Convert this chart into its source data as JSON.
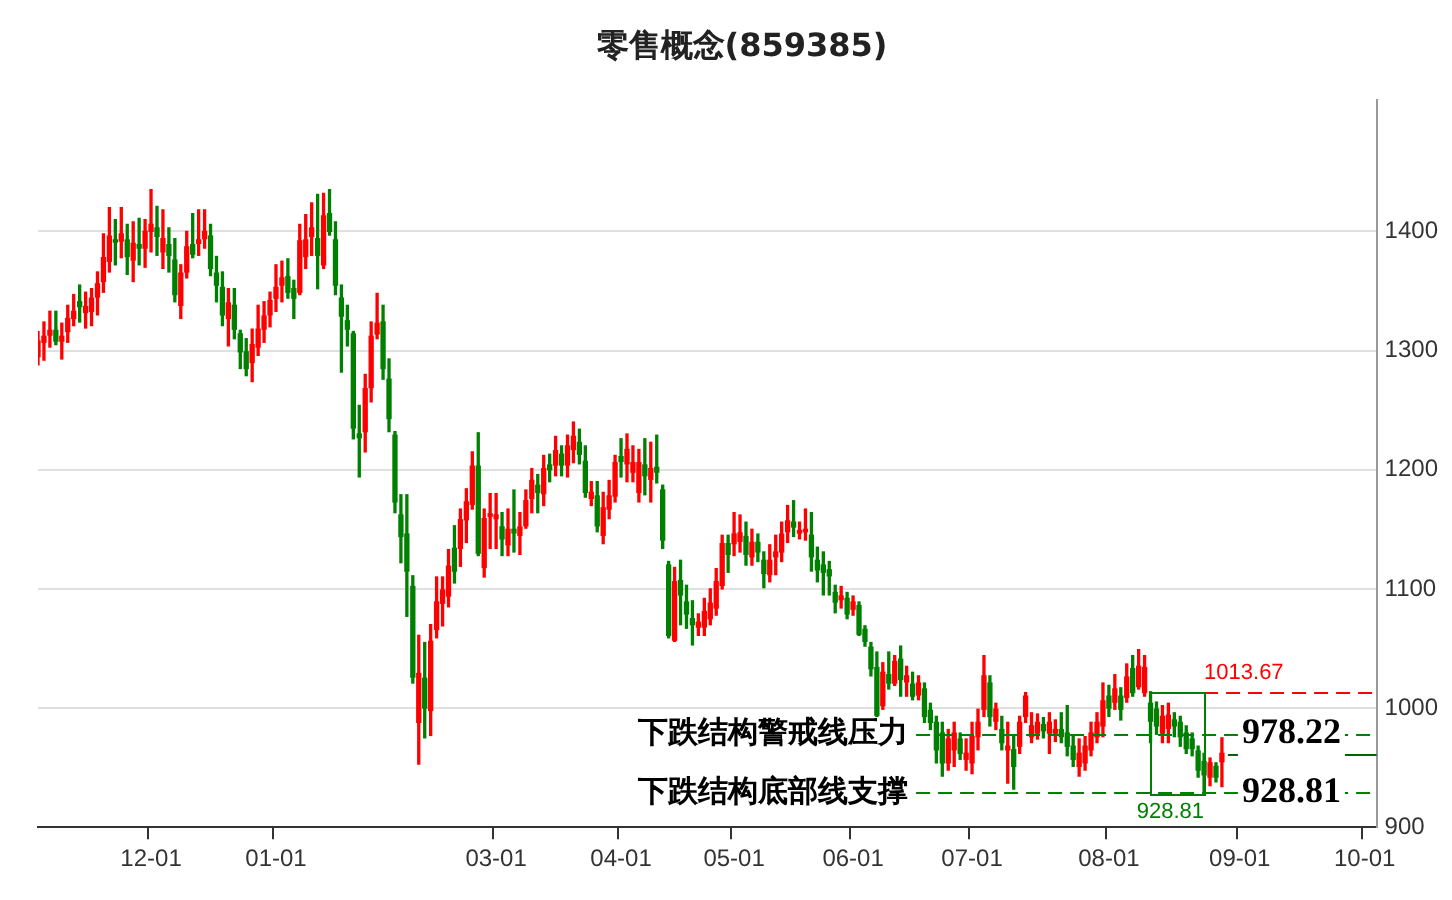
{
  "chart_data": {
    "type": "candlestick",
    "title": "零售概念(859385)",
    "categories": [
      null,
      null,
      null,
      null,
      null,
      null,
      null,
      null,
      null,
      null,
      null,
      null,
      null,
      null,
      null,
      null,
      null,
      null,
      null,
      "12-01",
      null,
      null,
      null,
      null,
      null,
      null,
      null,
      null,
      null,
      null,
      null,
      null,
      null,
      null,
      null,
      null,
      null,
      null,
      null,
      null,
      "01-01",
      null,
      null,
      null,
      null,
      null,
      null,
      null,
      null,
      null,
      null,
      null,
      null,
      null,
      null,
      null,
      null,
      null,
      null,
      null,
      null,
      null,
      null,
      null,
      null,
      null,
      null,
      null,
      null,
      null,
      null,
      null,
      null,
      null,
      null,
      null,
      null,
      "03-01",
      null,
      null,
      null,
      null,
      null,
      null,
      null,
      null,
      null,
      null,
      null,
      null,
      null,
      null,
      null,
      null,
      null,
      null,
      null,
      null,
      "04-01",
      null,
      null,
      null,
      null,
      null,
      null,
      null,
      null,
      null,
      null,
      null,
      null,
      null,
      null,
      null,
      null,
      null,
      null,
      "05-01",
      null,
      null,
      null,
      null,
      null,
      null,
      null,
      null,
      null,
      null,
      null,
      null,
      null,
      null,
      null,
      null,
      null,
      null,
      null,
      "06-01",
      null,
      null,
      null,
      null,
      null,
      null,
      null,
      null,
      null,
      null,
      null,
      null,
      null,
      null,
      null,
      null,
      null,
      null,
      null,
      "07-01",
      null,
      null,
      null,
      null,
      null,
      null,
      null,
      null,
      null,
      null,
      null,
      null,
      null,
      null,
      null,
      null,
      null,
      null,
      null,
      null,
      null,
      null,
      "08-01",
      null,
      null,
      null,
      null,
      null,
      null,
      null,
      null,
      null,
      null,
      null,
      null,
      null,
      null,
      null,
      null,
      null,
      null,
      null,
      null,
      null,
      "09-01",
      null,
      null,
      null,
      null,
      null,
      null,
      null,
      null,
      null,
      null,
      null,
      null,
      null,
      null,
      null,
      null,
      null,
      null,
      null,
      null,
      "10-01",
      null,
      null
    ],
    "ohlc": [
      [
        1295,
        1316,
        1288,
        1308
      ],
      [
        1307,
        1324,
        1292,
        1312
      ],
      [
        1313,
        1333,
        1303,
        1317
      ],
      [
        1317,
        1333,
        1305,
        1308
      ],
      [
        1308,
        1323,
        1293,
        1312
      ],
      [
        1316,
        1338,
        1307,
        1327
      ],
      [
        1327,
        1347,
        1321,
        1333
      ],
      [
        1341,
        1355,
        1324,
        1337
      ],
      [
        1332,
        1349,
        1319,
        1337
      ],
      [
        1333,
        1352,
        1321,
        1344
      ],
      [
        1345,
        1366,
        1330,
        1356
      ],
      [
        1358,
        1398,
        1349,
        1378
      ],
      [
        1375,
        1420,
        1366,
        1396
      ],
      [
        1393,
        1410,
        1372,
        1391
      ],
      [
        1392,
        1420,
        1378,
        1398
      ],
      [
        1393,
        1406,
        1364,
        1379
      ],
      [
        1376,
        1408,
        1358,
        1390
      ],
      [
        1389,
        1411,
        1372,
        1386
      ],
      [
        1386,
        1410,
        1370,
        1400
      ],
      [
        1400,
        1435,
        1383,
        1406
      ],
      [
        1403,
        1421,
        1380,
        1396
      ],
      [
        1383,
        1418,
        1369,
        1394
      ],
      [
        1389,
        1403,
        1366,
        1380
      ],
      [
        1376,
        1394,
        1341,
        1347
      ],
      [
        1338,
        1372,
        1327,
        1365
      ],
      [
        1366,
        1400,
        1361,
        1387
      ],
      [
        1389,
        1415,
        1378,
        1381
      ],
      [
        1390,
        1418,
        1380,
        1393
      ],
      [
        1394,
        1418,
        1386,
        1400
      ],
      [
        1396,
        1406,
        1363,
        1369
      ],
      [
        1365,
        1379,
        1341,
        1355
      ],
      [
        1353,
        1366,
        1321,
        1330
      ],
      [
        1327,
        1352,
        1304,
        1340
      ],
      [
        1338,
        1352,
        1310,
        1318
      ],
      [
        1314,
        1317,
        1285,
        1299
      ],
      [
        1299,
        1310,
        1279,
        1285
      ],
      [
        1290,
        1318,
        1274,
        1305
      ],
      [
        1303,
        1338,
        1296,
        1318
      ],
      [
        1318,
        1341,
        1307,
        1329
      ],
      [
        1330,
        1349,
        1320,
        1342
      ],
      [
        1344,
        1372,
        1333,
        1353
      ],
      [
        1355,
        1375,
        1341,
        1361
      ],
      [
        1362,
        1377,
        1344,
        1349
      ],
      [
        1352,
        1359,
        1327,
        1344
      ],
      [
        1349,
        1406,
        1347,
        1392
      ],
      [
        1379,
        1414,
        1369,
        1393
      ],
      [
        1396,
        1424,
        1380,
        1403
      ],
      [
        1394,
        1431,
        1352,
        1380
      ],
      [
        1372,
        1432,
        1369,
        1413
      ],
      [
        1415,
        1435,
        1397,
        1400
      ],
      [
        1393,
        1408,
        1347,
        1355
      ],
      [
        1344,
        1355,
        1282,
        1329
      ],
      [
        1325,
        1338,
        1304,
        1318
      ],
      [
        1314,
        1316,
        1226,
        1235
      ],
      [
        1230,
        1254,
        1194,
        1227
      ],
      [
        1232,
        1280,
        1215,
        1268
      ],
      [
        1269,
        1324,
        1257,
        1312
      ],
      [
        1314,
        1348,
        1310,
        1323
      ],
      [
        1324,
        1338,
        1276,
        1285
      ],
      [
        1276,
        1293,
        1232,
        1243
      ],
      [
        1229,
        1232,
        1164,
        1173
      ],
      [
        1162,
        1179,
        1122,
        1144
      ],
      [
        1146,
        1179,
        1077,
        1115
      ],
      [
        1102,
        1111,
        1021,
        1026
      ],
      [
        988,
        1061,
        953,
        1029
      ],
      [
        1025,
        1055,
        975,
        1000
      ],
      [
        998,
        1070,
        977,
        1056
      ],
      [
        1066,
        1110,
        1059,
        1089
      ],
      [
        1088,
        1110,
        1069,
        1099
      ],
      [
        1094,
        1133,
        1085,
        1119
      ],
      [
        1134,
        1153,
        1105,
        1115
      ],
      [
        1134,
        1167,
        1119,
        1158
      ],
      [
        1158,
        1184,
        1139,
        1173
      ],
      [
        1171,
        1215,
        1167,
        1203
      ],
      [
        1203,
        1231,
        1128,
        1130
      ],
      [
        1118,
        1167,
        1110,
        1159
      ],
      [
        1161,
        1180,
        1134,
        1163
      ],
      [
        1159,
        1180,
        1134,
        1162
      ],
      [
        1152,
        1164,
        1128,
        1142
      ],
      [
        1137,
        1167,
        1128,
        1150
      ],
      [
        1150,
        1183,
        1131,
        1147
      ],
      [
        1145,
        1164,
        1129,
        1152
      ],
      [
        1153,
        1183,
        1151,
        1174
      ],
      [
        1176,
        1201,
        1164,
        1191
      ],
      [
        1187,
        1196,
        1164,
        1181
      ],
      [
        1180,
        1212,
        1170,
        1201
      ],
      [
        1204,
        1213,
        1190,
        1200
      ],
      [
        1204,
        1228,
        1195,
        1216
      ],
      [
        1213,
        1220,
        1195,
        1204
      ],
      [
        1204,
        1229,
        1194,
        1220
      ],
      [
        1217,
        1240,
        1206,
        1228
      ],
      [
        1223,
        1234,
        1205,
        1213
      ],
      [
        1207,
        1220,
        1177,
        1181
      ],
      [
        1176,
        1190,
        1170,
        1181
      ],
      [
        1178,
        1190,
        1148,
        1153
      ],
      [
        1145,
        1181,
        1138,
        1168
      ],
      [
        1167,
        1191,
        1159,
        1178
      ],
      [
        1178,
        1212,
        1173,
        1206
      ],
      [
        1211,
        1226,
        1194,
        1207
      ],
      [
        1205,
        1230,
        1190,
        1217
      ],
      [
        1198,
        1220,
        1190,
        1206
      ],
      [
        1181,
        1217,
        1173,
        1206
      ],
      [
        1204,
        1226,
        1179,
        1195
      ],
      [
        1192,
        1223,
        1173,
        1201
      ],
      [
        1202,
        1229,
        1189,
        1198
      ],
      [
        1183,
        1187,
        1134,
        1141
      ],
      [
        1120,
        1123,
        1059,
        1061
      ],
      [
        1057,
        1118,
        1056,
        1106
      ],
      [
        1107,
        1124,
        1070,
        1095
      ],
      [
        1089,
        1103,
        1067,
        1079
      ],
      [
        1075,
        1090,
        1053,
        1070
      ],
      [
        1068,
        1079,
        1061,
        1072
      ],
      [
        1068,
        1092,
        1061,
        1081
      ],
      [
        1075,
        1100,
        1070,
        1088
      ],
      [
        1084,
        1117,
        1078,
        1106
      ],
      [
        1103,
        1145,
        1100,
        1138
      ],
      [
        1138,
        1145,
        1114,
        1129
      ],
      [
        1138,
        1164,
        1128,
        1146
      ],
      [
        1140,
        1162,
        1131,
        1147
      ],
      [
        1144,
        1156,
        1120,
        1129
      ],
      [
        1127,
        1150,
        1120,
        1139
      ],
      [
        1139,
        1146,
        1123,
        1131
      ],
      [
        1124,
        1131,
        1101,
        1113
      ],
      [
        1112,
        1137,
        1106,
        1124
      ],
      [
        1127,
        1145,
        1112,
        1131
      ],
      [
        1131,
        1156,
        1123,
        1146
      ],
      [
        1148,
        1170,
        1139,
        1157
      ],
      [
        1156,
        1174,
        1144,
        1152
      ],
      [
        1147,
        1156,
        1142,
        1149
      ],
      [
        1148,
        1167,
        1141,
        1150
      ],
      [
        1145,
        1164,
        1115,
        1127
      ],
      [
        1124,
        1135,
        1106,
        1116
      ],
      [
        1120,
        1131,
        1095,
        1114
      ],
      [
        1116,
        1123,
        1095,
        1111
      ],
      [
        1097,
        1103,
        1080,
        1089
      ],
      [
        1091,
        1102,
        1084,
        1094
      ],
      [
        1092,
        1097,
        1075,
        1079
      ],
      [
        1083,
        1094,
        1078,
        1089
      ],
      [
        1086,
        1089,
        1061,
        1062
      ],
      [
        1066,
        1069,
        1052,
        1056
      ],
      [
        1051,
        1055,
        1027,
        1033
      ],
      [
        1034,
        1047,
        993,
        994
      ],
      [
        1002,
        1038,
        999,
        1030
      ],
      [
        1028,
        1047,
        1016,
        1021
      ],
      [
        1021,
        1044,
        1019,
        1039
      ],
      [
        1041,
        1052,
        1010,
        1024
      ],
      [
        1022,
        1035,
        1010,
        1027
      ],
      [
        1020,
        1030,
        1007,
        1010
      ],
      [
        1011,
        1027,
        1007,
        1021
      ],
      [
        1016,
        1021,
        988,
        993
      ],
      [
        998,
        1004,
        982,
        988
      ],
      [
        988,
        993,
        954,
        965
      ],
      [
        979,
        988,
        943,
        954
      ],
      [
        954,
        982,
        948,
        974
      ],
      [
        965,
        988,
        951,
        979
      ],
      [
        974,
        979,
        957,
        962
      ],
      [
        957,
        974,
        948,
        962
      ],
      [
        954,
        988,
        945,
        976
      ],
      [
        976,
        999,
        965,
        988
      ],
      [
        999,
        1044,
        993,
        1027
      ],
      [
        1021,
        1027,
        985,
        993
      ],
      [
        989,
        1004,
        982,
        999
      ],
      [
        982,
        993,
        965,
        971
      ],
      [
        965,
        988,
        937,
        968
      ],
      [
        965,
        976,
        932,
        951
      ],
      [
        968,
        993,
        962,
        988
      ],
      [
        993,
        1013,
        988,
        1010
      ],
      [
        976,
        996,
        971,
        985
      ],
      [
        979,
        995,
        974,
        988
      ],
      [
        986,
        992,
        975,
        981
      ],
      [
        979,
        996,
        962,
        988
      ],
      [
        979,
        990,
        972,
        982
      ],
      [
        982,
        996,
        971,
        976
      ],
      [
        979,
        1002,
        960,
        968
      ],
      [
        968,
        976,
        951,
        957
      ],
      [
        951,
        974,
        943,
        962
      ],
      [
        954,
        976,
        948,
        968
      ],
      [
        965,
        988,
        960,
        979
      ],
      [
        976,
        996,
        971,
        988
      ],
      [
        985,
        1021,
        976,
        1006
      ],
      [
        1010,
        1019,
        993,
        1000
      ],
      [
        1005,
        1028,
        999,
        1016
      ],
      [
        1010,
        1017,
        990,
        999
      ],
      [
        1009,
        1037,
        1005,
        1026
      ],
      [
        1033,
        1044,
        1010,
        1013
      ],
      [
        1018,
        1049,
        1016,
        1035
      ],
      [
        1013,
        1044,
        1010,
        1034
      ],
      [
        1004,
        1013.67,
        971,
        989
      ],
      [
        999,
        1005,
        978,
        985
      ],
      [
        979,
        1002,
        971,
        993
      ],
      [
        983,
        1004,
        971,
        994
      ],
      [
        990,
        996,
        976,
        985
      ],
      [
        988,
        993,
        968,
        976
      ],
      [
        979,
        985,
        962,
        966
      ],
      [
        974,
        979,
        960,
        966
      ],
      [
        964,
        968,
        942,
        948
      ],
      [
        955,
        962,
        928.81,
        944
      ],
      [
        942,
        958,
        935,
        954
      ],
      [
        951,
        954,
        938,
        942
      ],
      [
        955,
        975,
        934,
        962
      ],
      null,
      null,
      null,
      null,
      null,
      null,
      null,
      null,
      null,
      null,
      null,
      null,
      null,
      null,
      null,
      null,
      null,
      null,
      null,
      null,
      null,
      null,
      null,
      null,
      null,
      null
    ],
    "ylim": [
      900,
      1510
    ],
    "yticks": [
      900,
      1000,
      1100,
      1200,
      1300,
      1400
    ],
    "grid": "y",
    "ref_lines": [
      {
        "axis": "y",
        "value": 1013.67,
        "color": "#ff0000",
        "line_style": "dashed"
      },
      {
        "axis": "y",
        "value": 978.22,
        "label": "下跌结构警戒线压力",
        "color": "#008000",
        "line_style": "dashed"
      },
      {
        "axis": "y",
        "value": 962,
        "color": "#006400",
        "line_style": "solid"
      },
      {
        "axis": "y",
        "value": 928.81,
        "label": "下跌结构底部线支撑",
        "color": "#008000",
        "line_style": "dashed"
      }
    ],
    "annotations": [
      {
        "text": "978.22",
        "y": 978.22
      },
      {
        "text": "928.81",
        "y": 928.81
      },
      {
        "text": "1013.67",
        "y": 1013.67
      },
      {
        "text": "928.81",
        "y": 928.81
      }
    ]
  }
}
